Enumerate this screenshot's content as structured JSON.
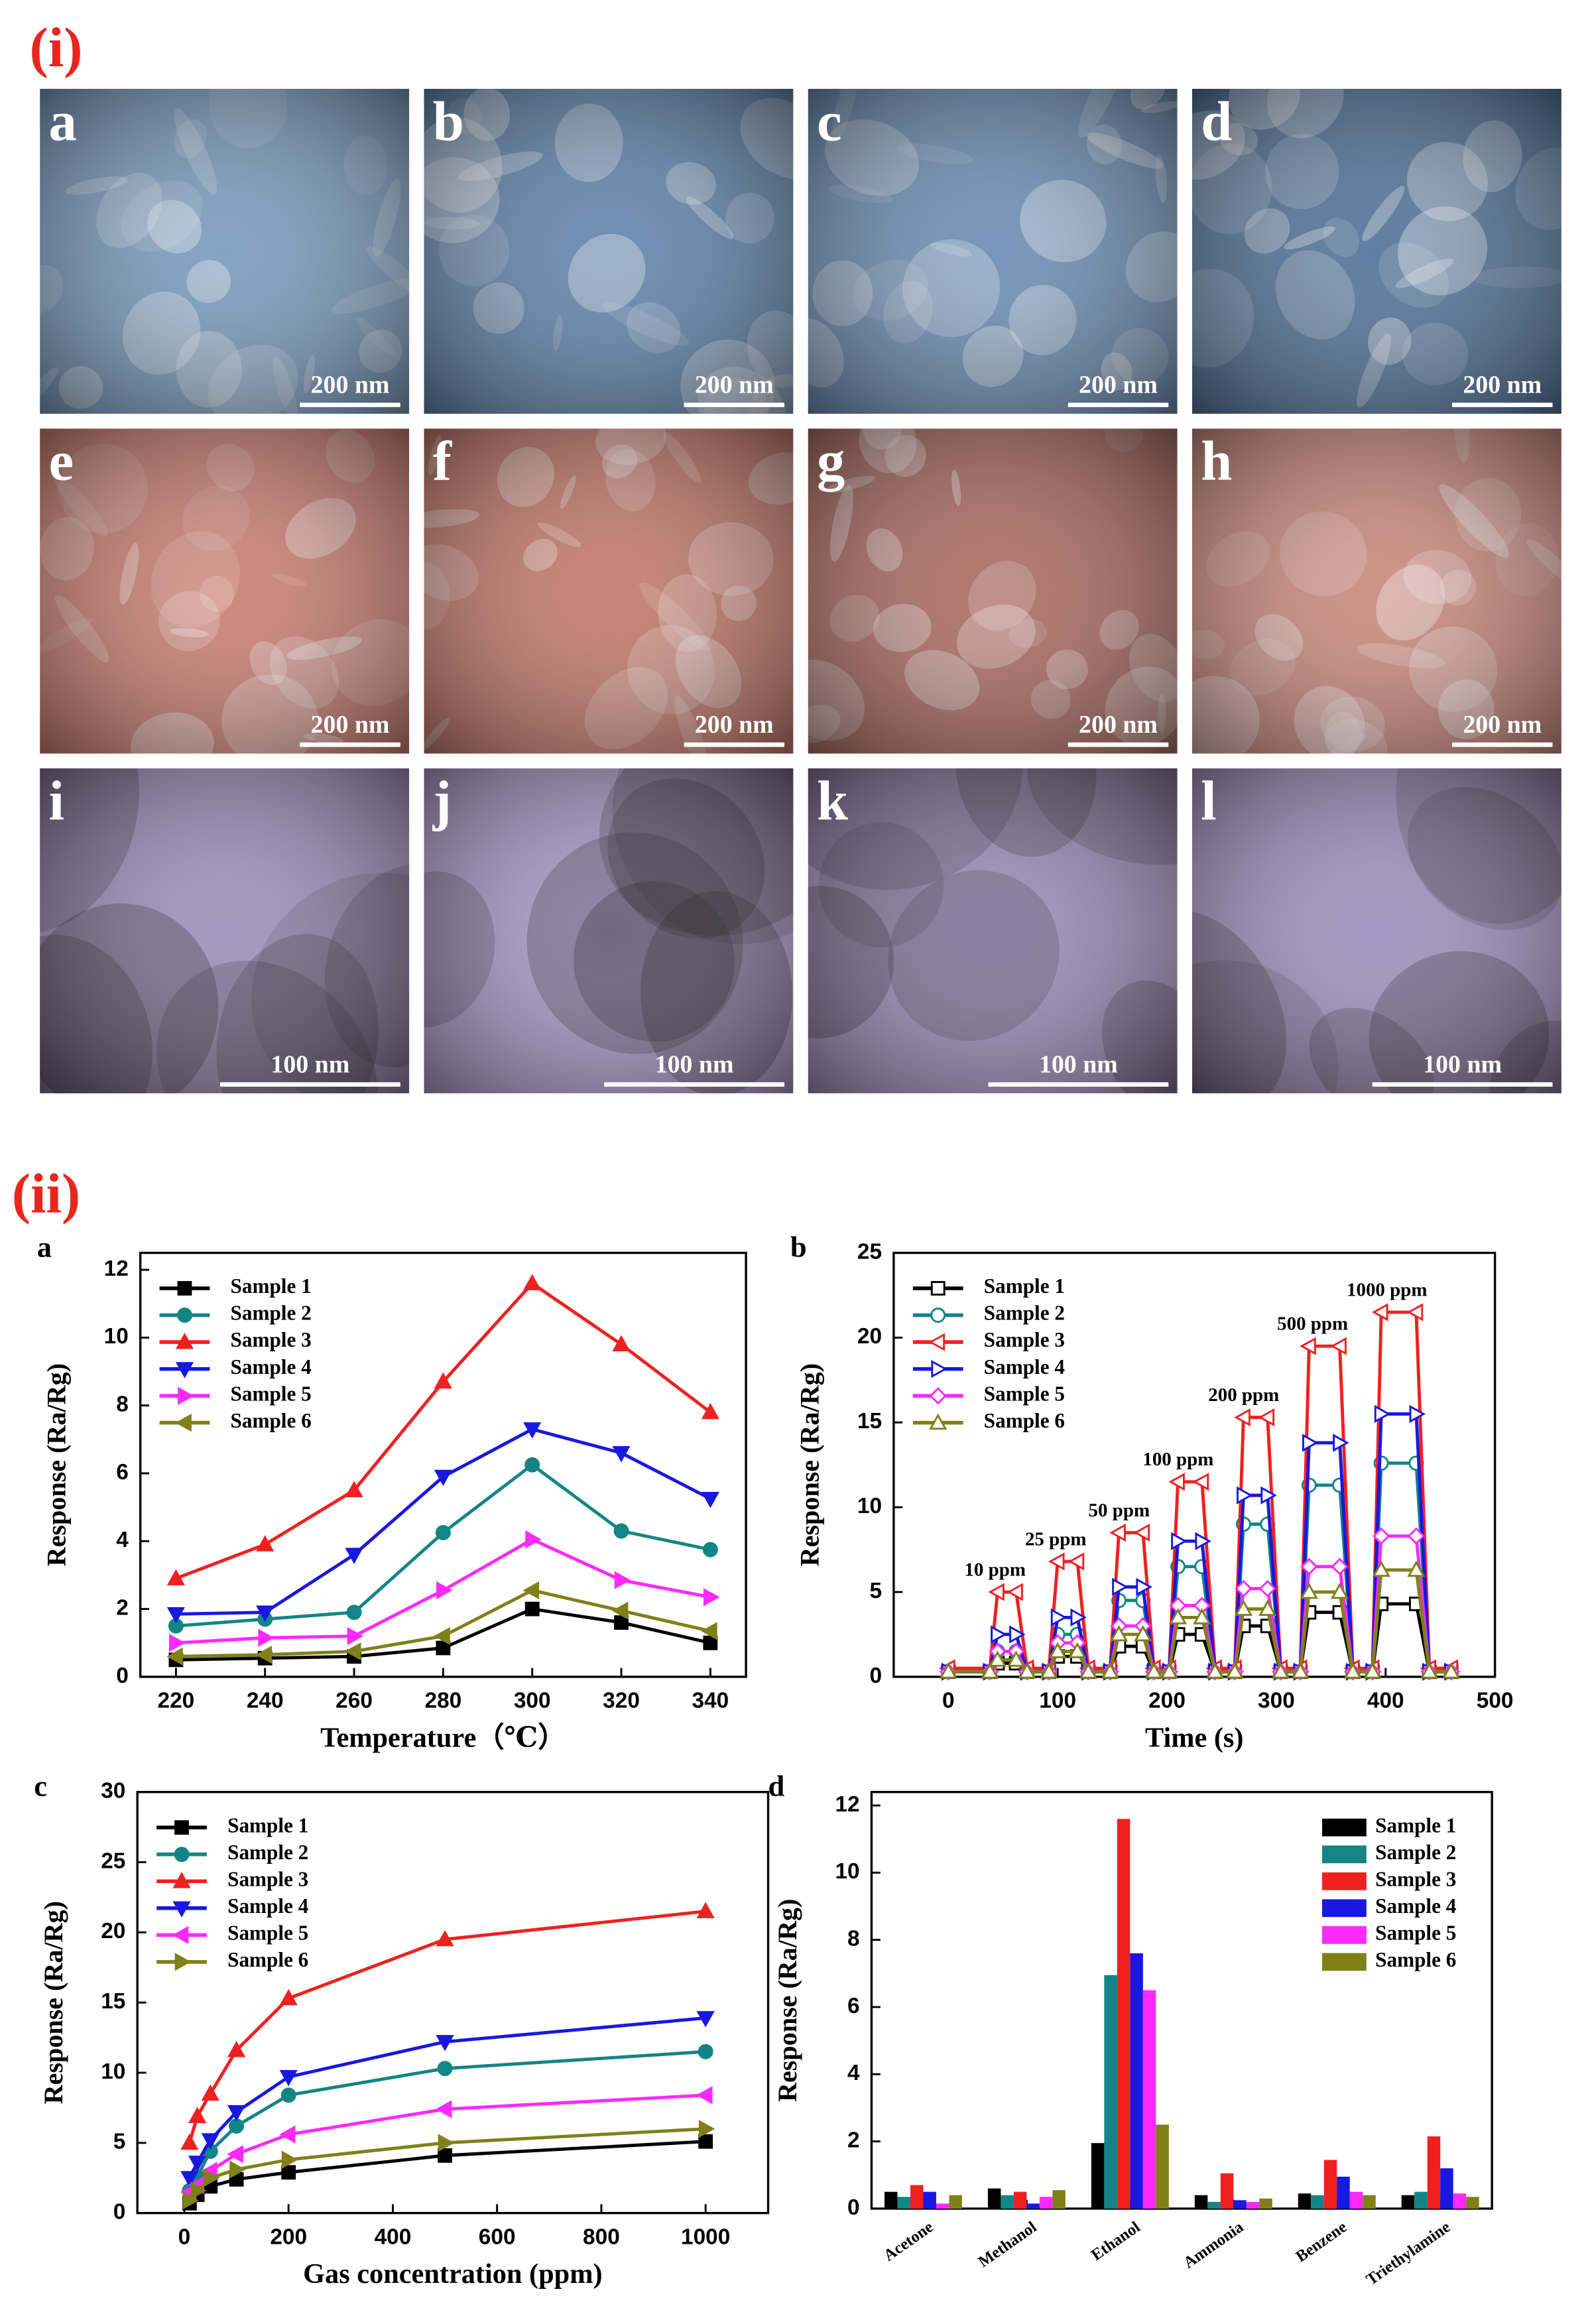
{
  "figure": {
    "part1_label": "(i)",
    "part2_label": "(ii)"
  },
  "micrographs": [
    {
      "label": "a",
      "scale": "200 nm",
      "tint": "#7396ba"
    },
    {
      "label": "b",
      "scale": "200 nm",
      "tint": "#5a7ea8"
    },
    {
      "label": "c",
      "scale": "200 nm",
      "tint": "#6688b0"
    },
    {
      "label": "d",
      "scale": "200 nm",
      "tint": "#4a6c94"
    },
    {
      "label": "e",
      "scale": "200 nm",
      "tint": "#c8786c"
    },
    {
      "label": "f",
      "scale": "200 nm",
      "tint": "#c07264"
    },
    {
      "label": "g",
      "scale": "200 nm",
      "tint": "#a8645a"
    },
    {
      "label": "h",
      "scale": "200 nm",
      "tint": "#c88478"
    },
    {
      "label": "i",
      "scale": "100 nm",
      "tint": "#9a8ab8"
    },
    {
      "label": "j",
      "scale": "100 nm",
      "tint": "#a494c4"
    },
    {
      "label": "k",
      "scale": "100 nm",
      "tint": "#9686b4"
    },
    {
      "label": "l",
      "scale": "100 nm",
      "tint": "#9b8cbc"
    }
  ],
  "chart_data": [
    {
      "type": "line",
      "panel": "a",
      "xlabel": "Temperature（℃）",
      "ylabel": "Response (Ra/Rg)",
      "x": [
        220,
        240,
        260,
        280,
        300,
        320,
        340
      ],
      "xlim": [
        212,
        348
      ],
      "xticks": [
        220,
        240,
        260,
        280,
        300,
        320,
        340
      ],
      "ylim": [
        0,
        12.5
      ],
      "yticks": [
        0,
        2,
        4,
        6,
        8,
        10,
        12
      ],
      "legend": "upper left",
      "open_markers": false,
      "series": [
        {
          "name": "Sample 1",
          "color": "#000000",
          "marker": "square",
          "values": [
            0.5,
            0.55,
            0.6,
            0.85,
            2.0,
            1.6,
            1.0
          ]
        },
        {
          "name": "Sample 2",
          "color": "#138585",
          "marker": "circle",
          "values": [
            1.5,
            1.7,
            1.9,
            4.25,
            6.25,
            4.3,
            3.75
          ]
        },
        {
          "name": "Sample 3",
          "color": "#f02020",
          "marker": "triangle-up",
          "values": [
            2.9,
            3.9,
            5.5,
            8.7,
            11.6,
            9.8,
            7.8
          ]
        },
        {
          "name": "Sample 4",
          "color": "#1818e0",
          "marker": "triangle-down",
          "values": [
            1.85,
            1.9,
            3.6,
            5.9,
            7.3,
            6.6,
            5.25
          ]
        },
        {
          "name": "Sample 5",
          "color": "#ff28ff",
          "marker": "triangle-right",
          "values": [
            1.0,
            1.15,
            1.2,
            2.55,
            4.05,
            2.85,
            2.35
          ]
        },
        {
          "name": "Sample 6",
          "color": "#808018",
          "marker": "triangle-left",
          "values": [
            0.6,
            0.65,
            0.75,
            1.2,
            2.55,
            1.95,
            1.35
          ]
        }
      ]
    },
    {
      "type": "line",
      "panel": "b",
      "xlabel": "Time (s)",
      "ylabel": "Response (Ra/Rg)",
      "x": [
        0,
        38,
        45,
        62,
        72,
        92,
        100,
        118,
        128,
        148,
        156,
        178,
        188,
        202,
        210,
        232,
        244,
        262,
        270,
        292,
        304,
        322,
        330,
        358,
        370,
        388,
        396,
        428,
        440,
        460
      ],
      "xlim": [
        -50,
        500
      ],
      "xticks": [
        0,
        100,
        200,
        300,
        400,
        500
      ],
      "ylim": [
        0,
        25
      ],
      "yticks": [
        0,
        5,
        10,
        15,
        20,
        25
      ],
      "legend": "upper left",
      "open_markers": true,
      "annotations": [
        "10 ppm",
        "25 ppm",
        "50 ppm",
        "100 ppm",
        "200 ppm",
        "500 ppm",
        "1000 ppm"
      ],
      "series": [
        {
          "name": "Sample 1",
          "color": "#000000",
          "marker": "square",
          "values": [
            0.3,
            0.3,
            0.8,
            0.8,
            0.3,
            0.3,
            1.2,
            1.2,
            0.3,
            0.3,
            1.8,
            1.8,
            0.3,
            0.3,
            2.5,
            2.5,
            0.3,
            0.3,
            3,
            3,
            0.3,
            0.3,
            3.8,
            3.8,
            0.3,
            0.3,
            4.3,
            4.3,
            0.3,
            0.3
          ]
        },
        {
          "name": "Sample 2",
          "color": "#138585",
          "marker": "circle",
          "values": [
            0.3,
            0.3,
            1.5,
            1.5,
            0.3,
            0.3,
            2.5,
            2.5,
            0.3,
            0.3,
            4.5,
            4.5,
            0.3,
            0.3,
            6.5,
            6.5,
            0.3,
            0.3,
            9,
            9,
            0.3,
            0.3,
            11.3,
            11.3,
            0.3,
            0.3,
            12.6,
            12.6,
            0.3,
            0.3
          ]
        },
        {
          "name": "Sample 3",
          "color": "#f02020",
          "marker": "triangle-left",
          "values": [
            0.5,
            0.5,
            5,
            5,
            0.5,
            0.5,
            6.8,
            6.8,
            0.5,
            0.5,
            8.5,
            8.5,
            0.5,
            0.5,
            11.5,
            11.5,
            0.5,
            0.5,
            15.3,
            15.3,
            0.5,
            0.5,
            19.5,
            19.5,
            0.5,
            0.5,
            21.5,
            21.5,
            0.5,
            0.5
          ]
        },
        {
          "name": "Sample 4",
          "color": "#1818e0",
          "marker": "triangle-right",
          "values": [
            0.3,
            0.3,
            2.5,
            2.5,
            0.3,
            0.3,
            3.5,
            3.5,
            0.3,
            0.3,
            5.3,
            5.3,
            0.3,
            0.3,
            8,
            8,
            0.3,
            0.3,
            10.7,
            10.7,
            0.3,
            0.3,
            13.8,
            13.8,
            0.3,
            0.3,
            15.5,
            15.5,
            0.3,
            0.3
          ]
        },
        {
          "name": "Sample 5",
          "color": "#ff28ff",
          "marker": "diamond",
          "values": [
            0.3,
            0.3,
            1.5,
            1.5,
            0.3,
            0.3,
            2,
            2,
            0.3,
            0.3,
            3,
            3,
            0.3,
            0.3,
            4.2,
            4.2,
            0.3,
            0.3,
            5.2,
            5.2,
            0.3,
            0.3,
            6.5,
            6.5,
            0.3,
            0.3,
            8.3,
            8.3,
            0.3,
            0.3
          ]
        },
        {
          "name": "Sample 6",
          "color": "#808018",
          "marker": "triangle-up",
          "values": [
            0.3,
            0.3,
            1,
            1,
            0.3,
            0.3,
            1.5,
            1.5,
            0.3,
            0.3,
            2.5,
            2.5,
            0.3,
            0.3,
            3.5,
            3.5,
            0.3,
            0.3,
            4,
            4,
            0.3,
            0.3,
            5,
            5,
            0.3,
            0.3,
            6.3,
            6.3,
            0.3,
            0.3
          ]
        }
      ]
    },
    {
      "type": "line",
      "panel": "c",
      "xlabel": "Gas concentration (ppm)",
      "ylabel": "Response (Ra/Rg)",
      "x": [
        10,
        25,
        50,
        100,
        200,
        500,
        1000
      ],
      "xlim": [
        -90,
        1120
      ],
      "xticks": [
        0,
        200,
        400,
        600,
        800,
        1000
      ],
      "ylim": [
        0,
        30
      ],
      "yticks": [
        0,
        5,
        10,
        15,
        20,
        25,
        30
      ],
      "legend": "upper left",
      "open_markers": false,
      "series": [
        {
          "name": "Sample 1",
          "color": "#000000",
          "marker": "square",
          "values": [
            0.7,
            1.3,
            1.9,
            2.4,
            2.9,
            4.1,
            5.1
          ]
        },
        {
          "name": "Sample 2",
          "color": "#138585",
          "marker": "circle",
          "values": [
            1.6,
            2.6,
            4.4,
            6.2,
            8.4,
            10.3,
            11.5
          ]
        },
        {
          "name": "Sample 3",
          "color": "#f02020",
          "marker": "triangle-up",
          "values": [
            5,
            6.9,
            8.5,
            11.6,
            15.3,
            19.5,
            21.5
          ]
        },
        {
          "name": "Sample 4",
          "color": "#1818e0",
          "marker": "triangle-down",
          "values": [
            2.5,
            3.6,
            5.2,
            7.2,
            9.7,
            12.2,
            13.9
          ]
        },
        {
          "name": "Sample 5",
          "color": "#ff28ff",
          "marker": "triangle-left",
          "values": [
            1.5,
            2,
            3,
            4.2,
            5.6,
            7.4,
            8.4
          ]
        },
        {
          "name": "Sample 6",
          "color": "#808018",
          "marker": "triangle-right",
          "values": [
            0.9,
            1.6,
            2.5,
            3.1,
            3.8,
            5,
            6
          ]
        }
      ]
    },
    {
      "type": "bar",
      "panel": "d",
      "ylabel": "Response (Ra/Rg)",
      "categories": [
        "Acetone",
        "Methanol",
        "Ethanol",
        "Ammonia",
        "Benzene",
        "Triethylamine"
      ],
      "ylim": [
        0,
        12.4
      ],
      "yticks": [
        0,
        2,
        4,
        6,
        8,
        10,
        12
      ],
      "legend": "upper right",
      "series": [
        {
          "name": "Sample 1",
          "color": "#000000",
          "values": [
            0.5,
            0.6,
            1.95,
            0.4,
            0.45,
            0.4
          ]
        },
        {
          "name": "Sample 2",
          "color": "#138585",
          "values": [
            0.35,
            0.4,
            6.95,
            0.2,
            0.4,
            0.5
          ]
        },
        {
          "name": "Sample 3",
          "color": "#f02020",
          "values": [
            0.7,
            0.5,
            11.6,
            1.05,
            1.45,
            2.15
          ]
        },
        {
          "name": "Sample 4",
          "color": "#1818e0",
          "values": [
            0.5,
            0.15,
            7.6,
            0.25,
            0.95,
            1.2
          ]
        },
        {
          "name": "Sample 5",
          "color": "#ff28ff",
          "values": [
            0.15,
            0.35,
            6.5,
            0.2,
            0.5,
            0.45
          ]
        },
        {
          "name": "Sample 6",
          "color": "#808018",
          "values": [
            0.4,
            0.55,
            2.5,
            0.3,
            0.4,
            0.35
          ]
        }
      ]
    }
  ]
}
